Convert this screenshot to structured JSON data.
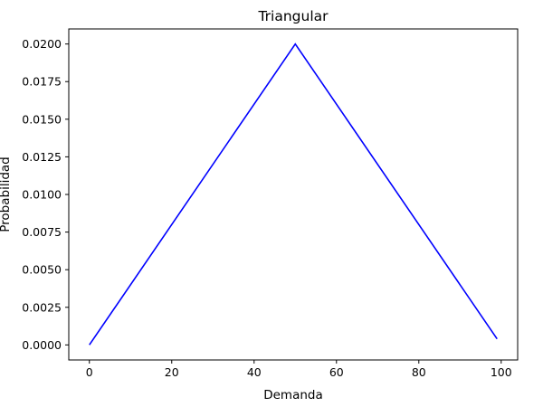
{
  "chart_data": {
    "type": "line",
    "title": "Triangular",
    "xlabel": "Demanda",
    "ylabel": "Probabilidad",
    "xlim": [
      -5,
      104
    ],
    "ylim": [
      -0.001,
      0.021
    ],
    "x_ticks": [
      0,
      20,
      40,
      60,
      80,
      100
    ],
    "x_tick_labels": [
      "0",
      "20",
      "40",
      "60",
      "80",
      "100"
    ],
    "y_ticks": [
      0.0,
      0.0025,
      0.005,
      0.0075,
      0.01,
      0.0125,
      0.015,
      0.0175,
      0.02
    ],
    "y_tick_labels": [
      "0.0000",
      "0.0025",
      "0.0050",
      "0.0075",
      "0.0100",
      "0.0125",
      "0.0150",
      "0.0175",
      "0.0200"
    ],
    "grid": false,
    "series": [
      {
        "color": "#0000ff",
        "x": [
          0,
          50,
          99
        ],
        "y": [
          0.0,
          0.02,
          0.0004
        ]
      }
    ]
  }
}
